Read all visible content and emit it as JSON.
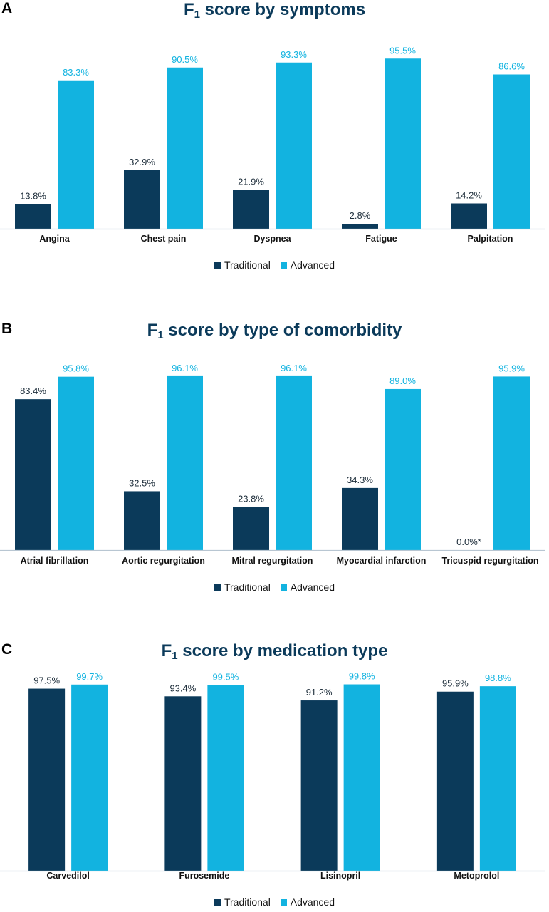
{
  "colors": {
    "traditional": "#0b3a5a",
    "advanced": "#12b3e0",
    "axis": "#b8c6d2"
  },
  "legend": {
    "traditional": "Traditional",
    "advanced": "Advanced"
  },
  "chart_data": [
    {
      "panel": "A",
      "type": "bar",
      "title_main": "F",
      "title_sub": "1",
      "title_rest": " score by symptoms",
      "categories": [
        "Angina",
        "Chest pain",
        "Dyspnea",
        "Fatigue",
        "Palpitation"
      ],
      "series": [
        {
          "name": "Traditional",
          "values": [
            13.8,
            32.9,
            21.9,
            2.8,
            14.2
          ],
          "labels": [
            "13.8%",
            "32.9%",
            "21.9%",
            "2.8%",
            "14.2%"
          ]
        },
        {
          "name": "Advanced",
          "values": [
            83.3,
            90.5,
            93.3,
            95.5,
            86.6
          ],
          "labels": [
            "83.3%",
            "90.5%",
            "93.3%",
            "95.5%",
            "86.6%"
          ]
        }
      ],
      "ylim": [
        0,
        100
      ],
      "legend_position": "bottom"
    },
    {
      "panel": "B",
      "type": "bar",
      "title_main": "F",
      "title_sub": "1",
      "title_rest": " score by type of comorbidity",
      "categories": [
        "Atrial fibrillation",
        "Aortic regurgitation",
        "Mitral regurgitation",
        "Myocardial infarction",
        "Tricuspid regurgitation"
      ],
      "series": [
        {
          "name": "Traditional",
          "values": [
            83.4,
            32.5,
            23.8,
            34.3,
            0.0
          ],
          "labels": [
            "83.4%",
            "32.5%",
            "23.8%",
            "34.3%",
            "0.0%*"
          ]
        },
        {
          "name": "Advanced",
          "values": [
            95.8,
            96.1,
            96.1,
            89.0,
            95.9
          ],
          "labels": [
            "95.8%",
            "96.1%",
            "96.1%",
            "89.0%",
            "95.9%"
          ]
        }
      ],
      "ylim": [
        0,
        100
      ],
      "legend_position": "bottom"
    },
    {
      "panel": "C",
      "type": "bar",
      "title_main": "F",
      "title_sub": "1",
      "title_rest": " score by medication type",
      "categories": [
        "Carvedilol",
        "Furosemide",
        "Lisinopril",
        "Metoprolol"
      ],
      "series": [
        {
          "name": "Traditional",
          "values": [
            97.5,
            93.4,
            91.2,
            95.9
          ],
          "labels": [
            "97.5%",
            "93.4%",
            "91.2%",
            "95.9%"
          ]
        },
        {
          "name": "Advanced",
          "values": [
            99.7,
            99.5,
            99.8,
            98.8
          ],
          "labels": [
            "99.7%",
            "99.5%",
            "99.8%",
            "98.8%"
          ]
        }
      ],
      "ylim": [
        0,
        100
      ],
      "legend_position": "bottom"
    }
  ]
}
